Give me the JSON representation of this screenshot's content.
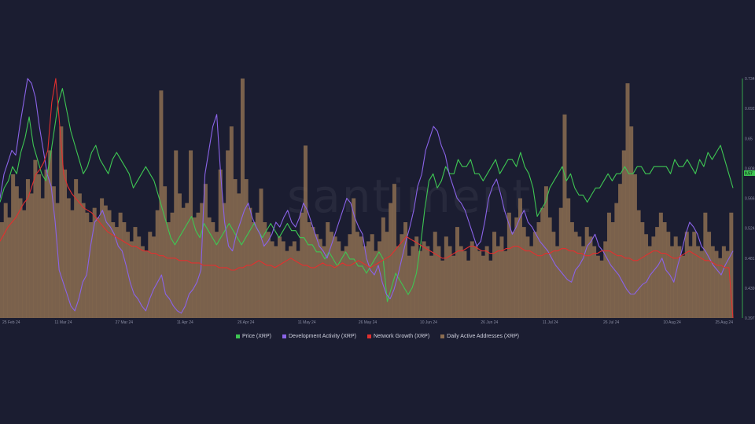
{
  "watermark": "santiment",
  "legend": [
    {
      "label": "Price (XRP)",
      "color": "#3ec653"
    },
    {
      "label": "Development Activity (XRP)",
      "color": "#8a63e8"
    },
    {
      "label": "Network Growth (XRP)",
      "color": "#e2302f"
    },
    {
      "label": "Daily Active Addresses (XRP)",
      "color": "#8b6d51"
    }
  ],
  "price_badge": "0.57",
  "chart_data": {
    "type": "line",
    "x_range": [
      "2024-02-25",
      "2024-08-25"
    ],
    "x_ticks": [
      "25 Feb 24",
      "11 Mar 24",
      "27 Mar 24",
      "11 Apr 24",
      "26 Apr 24",
      "11 May 24",
      "26 May 24",
      "10 Jun 24",
      "26 Jun 24",
      "11 Jul 24",
      "26 Jul 24",
      "10 Aug 24",
      "25 Aug 24"
    ],
    "y_ticks_price": [
      "0.734",
      "0.692",
      "0.65",
      "0.608",
      "0.566",
      "0.524",
      "0.481",
      "0.439",
      "0.397"
    ],
    "y_range_price": [
      0.397,
      0.734
    ],
    "series": [
      {
        "name": "Daily Active Addresses (XRP)",
        "type": "bar",
        "color": "#8b6d51",
        "scale": [
          0,
          100
        ],
        "values": [
          40,
          48,
          42,
          60,
          55,
          50,
          45,
          58,
          52,
          66,
          60,
          50,
          62,
          70,
          55,
          48,
          80,
          62,
          50,
          45,
          58,
          52,
          48,
          44,
          40,
          46,
          42,
          50,
          47,
          45,
          40,
          38,
          44,
          40,
          36,
          32,
          38,
          34,
          30,
          28,
          36,
          34,
          45,
          95,
          55,
          40,
          44,
          70,
          52,
          46,
          48,
          70,
          42,
          44,
          48,
          56,
          42,
          40,
          36,
          62,
          48,
          70,
          80,
          58,
          52,
          100,
          58,
          46,
          40,
          44,
          54,
          40,
          36,
          32,
          30,
          34,
          32,
          28,
          30,
          32,
          28,
          44,
          72,
          40,
          38,
          35,
          33,
          30,
          40,
          36,
          34,
          32,
          28,
          30,
          35,
          50,
          36,
          34,
          30,
          32,
          35,
          28,
          32,
          42,
          36,
          48,
          56,
          30,
          35,
          40,
          26,
          30,
          34,
          28,
          32,
          30,
          26,
          36,
          30,
          24,
          34,
          30,
          26,
          38,
          30,
          28,
          24,
          32,
          30,
          28,
          26,
          30,
          24,
          36,
          30,
          34,
          28,
          44,
          36,
          42,
          50,
          38,
          34,
          30,
          36,
          40,
          46,
          55,
          42,
          36,
          30,
          46,
          85,
          50,
          40,
          36,
          34,
          30,
          38,
          34,
          30,
          26,
          24,
          32,
          44,
          40,
          48,
          56,
          70,
          98,
          80,
          60,
          45,
          40,
          35,
          30,
          34,
          38,
          44,
          40,
          36,
          30,
          34,
          30,
          26,
          36,
          30,
          36,
          30,
          28,
          44,
          36,
          30,
          28,
          25,
          30,
          28,
          44
        ]
      },
      {
        "name": "Price (XRP)",
        "type": "line",
        "color": "#3ec653",
        "values": [
          0.56,
          0.58,
          0.59,
          0.61,
          0.6,
          0.63,
          0.65,
          0.68,
          0.64,
          0.62,
          0.6,
          0.59,
          0.62,
          0.66,
          0.7,
          0.72,
          0.69,
          0.66,
          0.64,
          0.62,
          0.6,
          0.61,
          0.63,
          0.64,
          0.62,
          0.61,
          0.6,
          0.62,
          0.63,
          0.62,
          0.61,
          0.6,
          0.58,
          0.59,
          0.6,
          0.61,
          0.6,
          0.59,
          0.57,
          0.55,
          0.53,
          0.51,
          0.5,
          0.51,
          0.52,
          0.53,
          0.54,
          0.52,
          0.51,
          0.53,
          0.52,
          0.51,
          0.5,
          0.51,
          0.52,
          0.53,
          0.52,
          0.51,
          0.5,
          0.51,
          0.52,
          0.53,
          0.52,
          0.51,
          0.52,
          0.53,
          0.52,
          0.51,
          0.52,
          0.53,
          0.52,
          0.52,
          0.51,
          0.51,
          0.5,
          0.5,
          0.49,
          0.49,
          0.48,
          0.49,
          0.48,
          0.47,
          0.48,
          0.49,
          0.48,
          0.48,
          0.47,
          0.47,
          0.46,
          0.47,
          0.48,
          0.49,
          0.48,
          0.42,
          0.44,
          0.46,
          0.45,
          0.44,
          0.43,
          0.44,
          0.46,
          0.5,
          0.55,
          0.59,
          0.6,
          0.58,
          0.59,
          0.61,
          0.6,
          0.6,
          0.62,
          0.61,
          0.61,
          0.62,
          0.6,
          0.6,
          0.59,
          0.6,
          0.61,
          0.62,
          0.6,
          0.61,
          0.62,
          0.62,
          0.61,
          0.63,
          0.61,
          0.6,
          0.58,
          0.54,
          0.55,
          0.56,
          0.58,
          0.59,
          0.6,
          0.61,
          0.59,
          0.6,
          0.58,
          0.57,
          0.57,
          0.56,
          0.57,
          0.58,
          0.58,
          0.59,
          0.6,
          0.59,
          0.6,
          0.6,
          0.61,
          0.6,
          0.6,
          0.61,
          0.61,
          0.6,
          0.6,
          0.61,
          0.61,
          0.61,
          0.61,
          0.6,
          0.62,
          0.61,
          0.61,
          0.62,
          0.61,
          0.6,
          0.62,
          0.61,
          0.63,
          0.62,
          0.63,
          0.64,
          0.62,
          0.6,
          0.58
        ]
      },
      {
        "name": "Development Activity (XRP)",
        "type": "line",
        "color": "#8a63e8",
        "scale": [
          0,
          100
        ],
        "values": [
          50,
          60,
          65,
          70,
          68,
          80,
          90,
          100,
          98,
          92,
          80,
          70,
          60,
          55,
          40,
          20,
          15,
          10,
          5,
          3,
          8,
          15,
          18,
          30,
          40,
          42,
          45,
          40,
          38,
          35,
          30,
          28,
          22,
          15,
          10,
          8,
          5,
          3,
          8,
          12,
          15,
          18,
          10,
          8,
          5,
          3,
          2,
          5,
          10,
          12,
          15,
          20,
          60,
          70,
          80,
          85,
          60,
          40,
          30,
          28,
          35,
          40,
          45,
          48,
          42,
          38,
          35,
          30,
          32,
          35,
          40,
          38,
          42,
          45,
          40,
          38,
          42,
          48,
          45,
          40,
          35,
          30,
          28,
          25,
          30,
          35,
          40,
          45,
          50,
          48,
          42,
          38,
          35,
          25,
          20,
          18,
          22,
          15,
          10,
          8,
          12,
          18,
          25,
          32,
          38,
          45,
          55,
          60,
          70,
          75,
          80,
          78,
          72,
          68,
          60,
          55,
          50,
          48,
          45,
          40,
          35,
          30,
          32,
          40,
          50,
          55,
          58,
          52,
          45,
          40,
          35,
          38,
          42,
          45,
          40,
          38,
          35,
          32,
          30,
          28,
          25,
          22,
          20,
          18,
          16,
          15,
          20,
          22,
          25,
          30,
          32,
          35,
          30,
          28,
          25,
          22,
          20,
          18,
          15,
          12,
          10,
          10,
          12,
          14,
          15,
          18,
          20,
          22,
          25,
          20,
          18,
          15,
          22,
          28,
          35,
          40,
          38,
          35,
          30,
          28,
          25,
          22,
          20,
          18,
          22,
          25,
          28
        ]
      },
      {
        "name": "Network Growth (XRP)",
        "type": "line",
        "color": "#e2302f",
        "scale": [
          0,
          100
        ],
        "values": [
          32,
          35,
          38,
          40,
          42,
          45,
          48,
          50,
          55,
          60,
          62,
          65,
          70,
          90,
          100,
          80,
          60,
          55,
          52,
          50,
          48,
          46,
          45,
          44,
          42,
          40,
          38,
          36,
          35,
          34,
          33,
          32,
          31,
          30,
          30,
          29,
          28,
          28,
          27,
          27,
          26,
          26,
          25,
          25,
          25,
          24,
          24,
          24,
          23,
          23,
          23,
          22,
          22,
          22,
          22,
          21,
          21,
          21,
          20,
          20,
          21,
          21,
          22,
          22,
          23,
          24,
          23,
          22,
          22,
          21,
          22,
          23,
          24,
          25,
          24,
          23,
          22,
          22,
          21,
          21,
          22,
          23,
          22,
          22,
          21,
          22,
          23,
          22,
          22,
          23,
          24,
          23,
          22,
          21,
          22,
          23,
          24,
          25,
          26,
          28,
          30,
          32,
          34,
          33,
          32,
          31,
          30,
          29,
          28,
          27,
          26,
          25,
          25,
          26,
          27,
          28,
          28,
          29,
          30,
          30,
          29,
          28,
          28,
          27,
          27,
          28,
          28,
          29,
          29,
          30,
          30,
          29,
          28,
          28,
          27,
          26,
          26,
          27,
          27,
          28,
          28,
          29,
          29,
          28,
          28,
          27,
          27,
          26,
          26,
          27,
          27,
          28,
          28,
          28,
          27,
          26,
          26,
          25,
          25,
          24,
          24,
          25,
          26,
          27,
          28,
          28,
          27,
          27,
          26,
          25,
          25,
          26,
          27,
          28,
          27,
          26,
          25,
          24,
          24,
          23,
          22,
          22,
          21,
          21,
          0
        ]
      }
    ]
  }
}
